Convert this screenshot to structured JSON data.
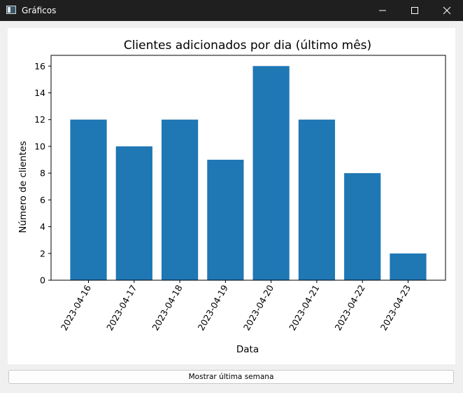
{
  "window": {
    "title": "Gráficos",
    "icon": "app-window-icon",
    "controls": [
      "minimize-icon",
      "maximize-icon",
      "close-icon"
    ]
  },
  "chart_data": {
    "type": "bar",
    "title": "Clientes adicionados por dia (último mês)",
    "xlabel": "Data",
    "ylabel": "Número de clientes",
    "categories": [
      "2023-04-16",
      "2023-04-17",
      "2023-04-18",
      "2023-04-19",
      "2023-04-20",
      "2023-04-21",
      "2023-04-22",
      "2023-04-23"
    ],
    "values": [
      12,
      10,
      12,
      9,
      16,
      12,
      8,
      2
    ],
    "ylim": [
      0,
      16.8
    ],
    "yticks": [
      0,
      2,
      4,
      6,
      8,
      10,
      12,
      14,
      16
    ],
    "bar_color": "#1f77b4",
    "grid": false,
    "xtick_rotation": "60 degrees"
  },
  "footer": {
    "button_label": "Mostrar última semana"
  }
}
